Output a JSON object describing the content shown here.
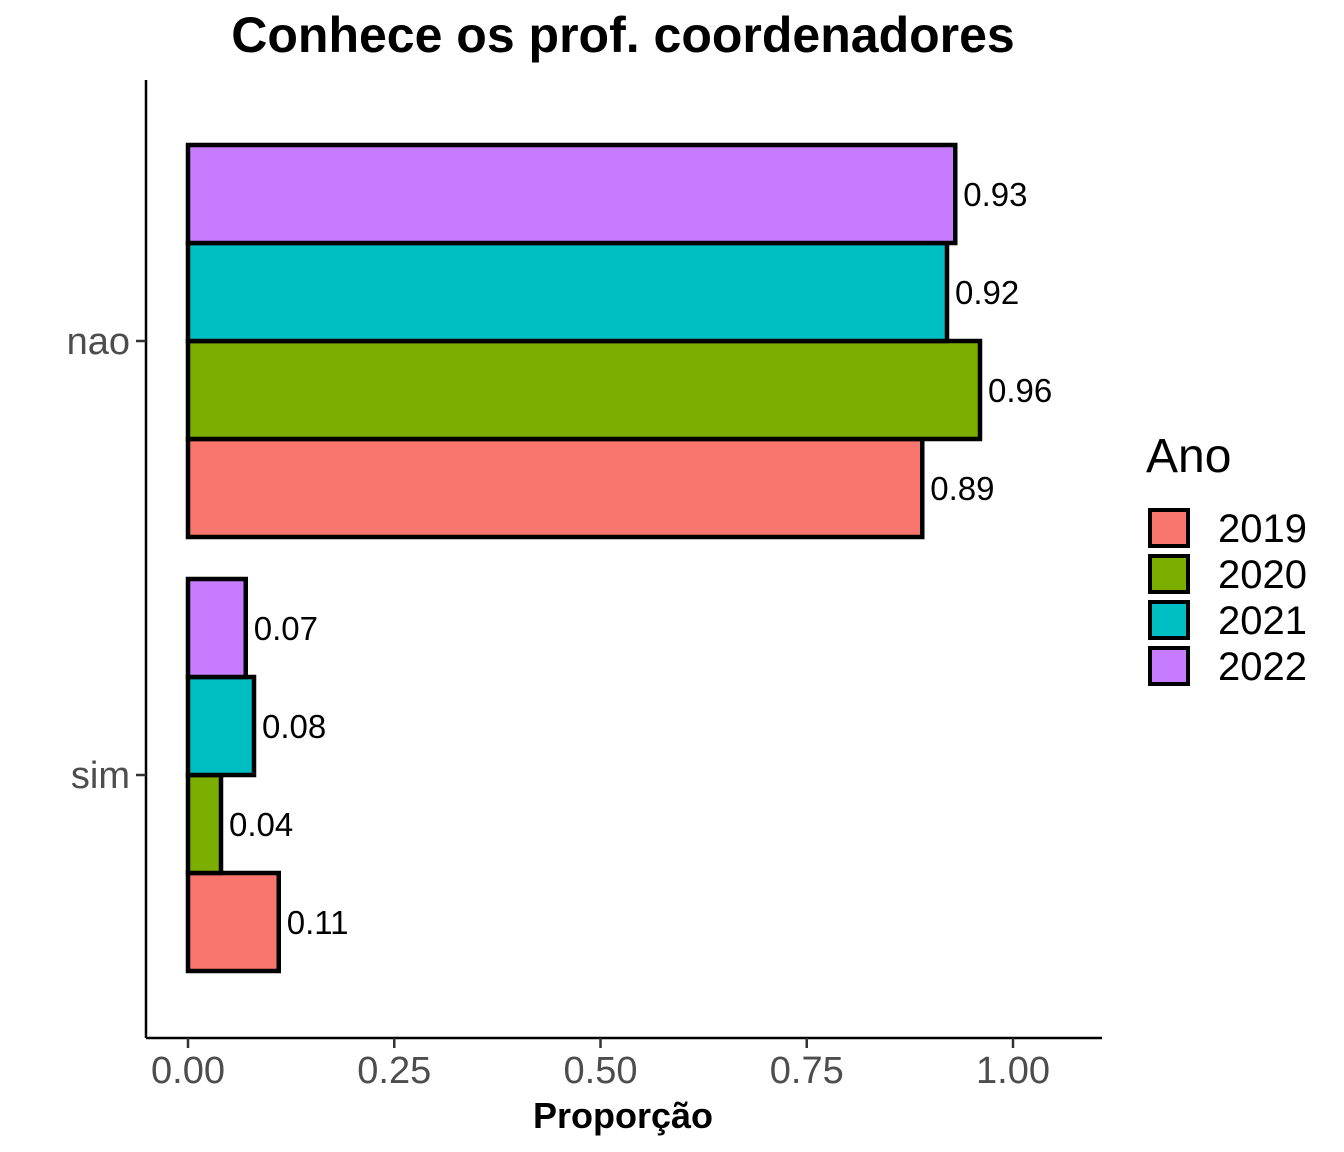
{
  "chart_data": {
    "type": "bar",
    "orientation": "horizontal",
    "title": "Conhece os prof. coordenadores",
    "xlabel": "Proporção",
    "ylabel": "",
    "categories": [
      "nao",
      "sim"
    ],
    "series": [
      {
        "name": "2019",
        "color": "#F8766D",
        "values": [
          0.89,
          0.11
        ],
        "labels": [
          "0.89",
          "0.11"
        ]
      },
      {
        "name": "2020",
        "color": "#7CAE00",
        "values": [
          0.96,
          0.04
        ],
        "labels": [
          "0.96",
          "0.04"
        ]
      },
      {
        "name": "2021",
        "color": "#00BFC4",
        "values": [
          0.92,
          0.08
        ],
        "labels": [
          "0.92",
          "0.08"
        ]
      },
      {
        "name": "2022",
        "color": "#C77CFF",
        "values": [
          0.93,
          0.07
        ],
        "labels": [
          "0.93",
          "0.07"
        ]
      }
    ],
    "xlim": [
      0,
      1.1
    ],
    "xticks": [
      "0.00",
      "0.25",
      "0.50",
      "0.75",
      "1.00"
    ],
    "grid": false,
    "legend": {
      "title": "Ano",
      "position": "right"
    }
  }
}
